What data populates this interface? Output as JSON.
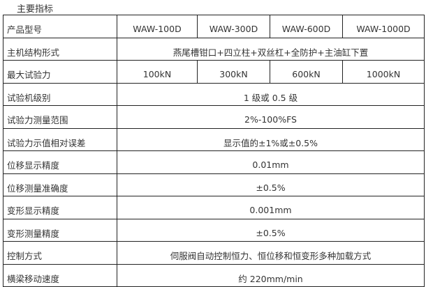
{
  "title": "主要指标",
  "header": {
    "label": "产品型号",
    "models": [
      "WAW-100D",
      "WAW-300D",
      "WAW-600D",
      "WAW-1000D"
    ]
  },
  "structure": {
    "label": "主机结构形式",
    "value": "燕尾槽钳口+四立柱+双丝杠+全防护+主油缸下置"
  },
  "max_force": {
    "label": "最大试验力",
    "values": [
      "100kN",
      "300kN",
      "600kN",
      "1000kN"
    ]
  },
  "rows": [
    {
      "label": "试验机级别",
      "value": "1 级或 0.5 级"
    },
    {
      "label": "试验力测量范围",
      "value": "2%-100%FS"
    },
    {
      "label": "试验力示值相对误差",
      "value": "显示值的±1%或±0.5%"
    },
    {
      "label": "位移显示精度",
      "value": "0.01mm"
    },
    {
      "label": "位移测量准确度",
      "value": "±0.5%"
    },
    {
      "label": "变形显示精度",
      "value": "0.001mm"
    },
    {
      "label": "变形测量精度",
      "value": "±0.5%"
    },
    {
      "label": "控制方式",
      "value": "伺服阀自动控制恒力、恒位移和恒变形多种加载方式"
    },
    {
      "label": "横梁移动速度",
      "value": "约 220mm/min"
    }
  ]
}
